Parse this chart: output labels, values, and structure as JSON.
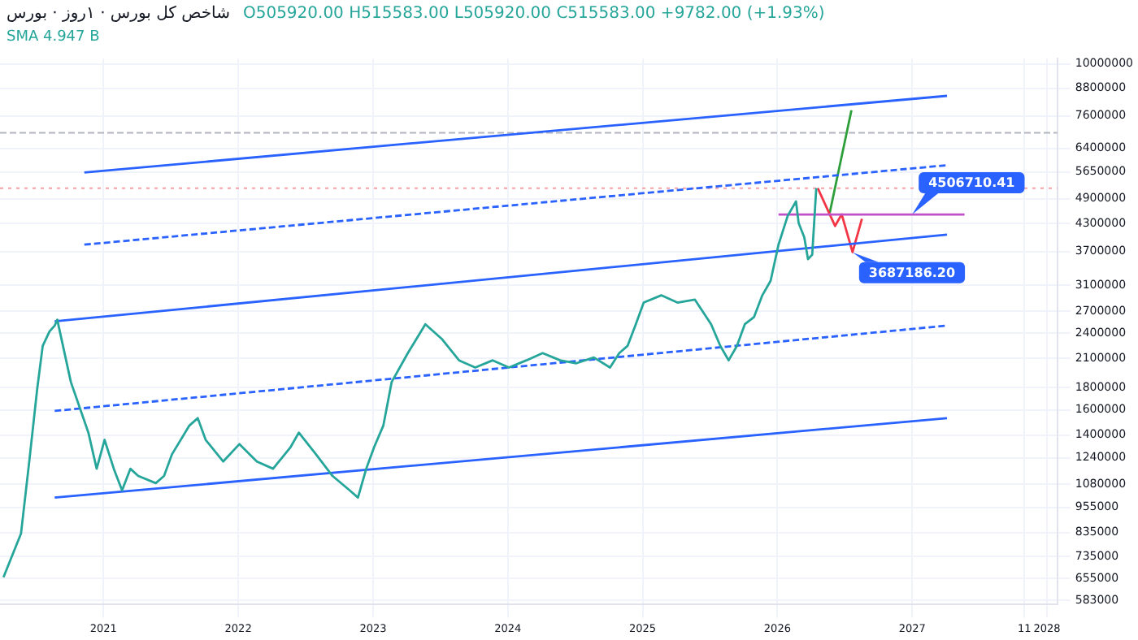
{
  "chart_data": {
    "type": "line",
    "title": "شاخص کل بورس · ۱روز · بورس",
    "subtitle": "O505920.00 H515583.00 L505920.00 C515583.00 +9782.00 (+1.93%)",
    "annotations": [
      "SMA 4.947 B",
      {
        "text": "4506710.41",
        "x": "2027-01-01",
        "y": 4506710.41
      },
      {
        "text": "3687186.20",
        "x": "2026-07-22",
        "y": 3687186.2
      }
    ],
    "log": "y",
    "grid": true,
    "legend": false,
    "marker": "none",
    "xlim": [
      "2020-03-25",
      "2028-01-29"
    ],
    "xticks": [
      "2021",
      "2022",
      "2023",
      "2024",
      "2025",
      "2026",
      "2027",
      {
        "value": "2027-11",
        "label": "11"
      },
      "2028"
    ],
    "ylim": [
      570000,
      10300000
    ],
    "yticks": [
      583000,
      655000,
      735000,
      835000,
      955000,
      1080000,
      1240000,
      1400000,
      1600000,
      1800000,
      2100000,
      2400000,
      2700000,
      3100000,
      3700000,
      4300000,
      4900000,
      5650000,
      6400000,
      7600000,
      8800000,
      10000000
    ],
    "ref_lines": [
      {
        "axis": "y",
        "value": 6945000,
        "color": "#b2b5be",
        "line_style": "dashed"
      },
      {
        "axis": "y",
        "value": 5179000,
        "color": "#f7a1a8",
        "line_style": "dotted"
      }
    ],
    "series": [
      {
        "color": "#26a69a",
        "x": [
          "2020-04-04",
          "2020-05-21",
          "2020-06-13",
          "2020-07-04",
          "2020-07-19",
          "2020-08-07",
          "2020-08-21",
          "2020-08-28",
          "2020-10-04",
          "2020-11-21",
          "2020-12-13",
          "2021-01-04",
          "2021-01-29",
          "2021-02-21",
          "2021-03-13",
          "2021-04-04",
          "2021-05-21",
          "2021-06-13",
          "2021-07-04",
          "2021-08-21",
          "2021-09-13",
          "2021-10-04",
          "2021-11-21",
          "2022-01-04",
          "2022-02-21",
          "2022-04-04",
          "2022-05-21",
          "2022-06-13",
          "2022-07-29",
          "2022-09-13",
          "2022-10-29",
          "2022-11-21",
          "2022-12-13",
          "2023-01-04",
          "2023-01-29",
          "2023-02-21",
          "2023-04-04",
          "2023-05-21",
          "2023-07-04",
          "2023-08-21",
          "2023-10-04",
          "2023-11-21",
          "2024-01-04",
          "2024-02-21",
          "2024-04-04",
          "2024-05-21",
          "2024-07-04",
          "2024-08-21",
          "2024-10-04",
          "2024-10-29",
          "2024-11-21",
          "2024-12-13",
          "2025-01-04",
          "2025-02-21",
          "2025-04-04",
          "2025-05-21",
          "2025-07-04",
          "2025-07-29",
          "2025-08-21",
          "2025-09-13",
          "2025-10-04",
          "2025-10-29",
          "2025-11-21",
          "2025-12-13",
          "2026-01-04",
          "2026-01-29",
          "2026-02-21",
          "2026-02-28",
          "2026-03-13",
          "2026-03-23",
          "2026-04-04",
          "2026-04-15"
        ],
        "values": [
          659000,
          830000,
          1217000,
          1785000,
          2245000,
          2424000,
          2500000,
          2580000,
          1854000,
          1418000,
          1171000,
          1365000,
          1171000,
          1044000,
          1171000,
          1127000,
          1085000,
          1127000,
          1264000,
          1473000,
          1531000,
          1365000,
          1217000,
          1334000,
          1217000,
          1171000,
          1313000,
          1418000,
          1264000,
          1127000,
          1044000,
          1005000,
          1171000,
          1313000,
          1473000,
          1854000,
          2161000,
          2519000,
          2333000,
          2080000,
          2002000,
          2080000,
          2002000,
          2080000,
          2161000,
          2080000,
          2048000,
          2112000,
          2002000,
          2161000,
          2245000,
          2519000,
          2825000,
          2936000,
          2825000,
          2869000,
          2519000,
          2245000,
          2080000,
          2245000,
          2519000,
          2617000,
          2936000,
          3170000,
          3840000,
          4475000,
          4830000,
          4310000,
          3990000,
          3556000,
          3640000,
          5180000
        ]
      },
      {
        "color": "#2962ff",
        "x": [
          "2020-11-10",
          "2027-04-04"
        ],
        "values": [
          5630000,
          8450000
        ]
      },
      {
        "color": "#2962ff",
        "line_style": "dashed",
        "x": [
          "2020-11-10",
          "2027-04-04"
        ],
        "values": [
          3840000,
          5850000
        ]
      },
      {
        "color": "#2962ff",
        "x": [
          "2020-08-21",
          "2027-04-04"
        ],
        "values": [
          2557000,
          4050000
        ]
      },
      {
        "color": "#2962ff",
        "line_style": "dashed",
        "x": [
          "2020-08-21",
          "2027-04-04"
        ],
        "values": [
          1591000,
          2500000
        ]
      },
      {
        "color": "#2962ff",
        "x": [
          "2020-08-21",
          "2027-04-04"
        ],
        "values": [
          1005000,
          1531000
        ]
      },
      {
        "color": "#c050c8",
        "x": [
          "2026-01-04",
          "2027-05-21"
        ],
        "values": [
          4506710.41,
          4506710.41
        ]
      },
      {
        "color": "#f23645",
        "x": [
          "2026-04-19",
          "2026-06-05",
          "2026-06-23",
          "2026-07-22",
          "2026-08-17"
        ],
        "values": [
          5180000,
          4240000,
          4510000,
          3690000,
          4406000
        ]
      },
      {
        "color": "#2e9e3a",
        "x": [
          "2026-05-21",
          "2026-07-19"
        ],
        "values": [
          4544000,
          7830000
        ]
      }
    ]
  }
}
